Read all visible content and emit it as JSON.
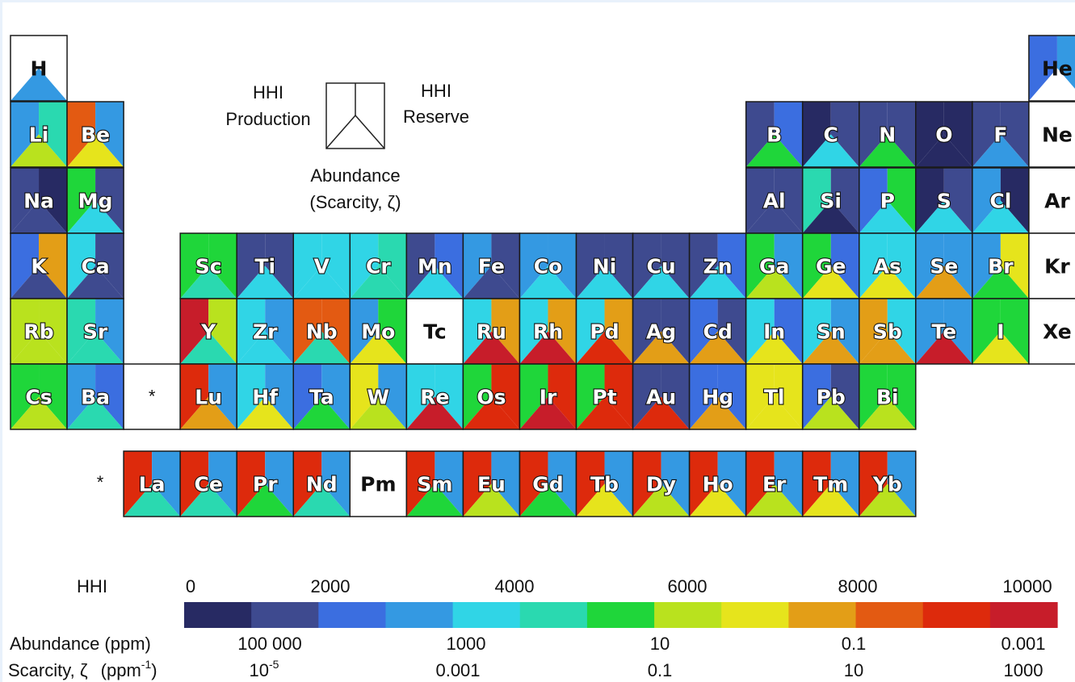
{
  "legend": {
    "hhi_production": [
      "HHI",
      "Production"
    ],
    "hhi_reserve": [
      "HHI",
      "Reserve"
    ],
    "abundance": [
      "Abundance",
      "(Scarcity, ζ)"
    ]
  },
  "footnote_marker": "*",
  "scale": {
    "hhi_label": "HHI",
    "hhi_ticks": [
      "0",
      "2000",
      "4000",
      "6000",
      "8000",
      "10000"
    ],
    "abundance_label": "Abundance (ppm)",
    "abundance_ticks": [
      "100 000",
      "1000",
      "10",
      "0.1",
      "0.001"
    ],
    "scarcity_label_main": "Scarcity, ζ",
    "scarcity_label_unit": "(ppm",
    "scarcity_label_unit_sup": "-1",
    "scarcity_label_unit_close": ")",
    "scarcity_ticks": [
      {
        "base": "10",
        "sup": "-5"
      },
      {
        "base": "0.001",
        "sup": ""
      },
      {
        "base": "0.1",
        "sup": ""
      },
      {
        "base": "10",
        "sup": ""
      },
      {
        "base": "1000",
        "sup": ""
      }
    ],
    "colors": [
      "#272a63",
      "#3e4a8f",
      "#3b6ee0",
      "#3499e2",
      "#30d5e6",
      "#2ad9b0",
      "#1fd63a",
      "#b9e21e",
      "#e6e41c",
      "#e39e17",
      "#e35a12",
      "#dd2a0c",
      "#c71d2a"
    ]
  },
  "colors": {
    "0": "#272a63",
    "1": "#3e4a8f",
    "2": "#3b6ee0",
    "3": "#3499e2",
    "4": "#30d5e6",
    "5": "#2ad9b0",
    "6": "#1fd63a",
    "7": "#b9e21e",
    "8": "#e6e41c",
    "9": "#e39e17",
    "A": "#e35a12",
    "B": "#dd2a0c",
    "C": "#c71d2a",
    "W": "#ffffff"
  },
  "elements": [
    {
      "sym": "H",
      "row": 0,
      "col": 0,
      "c": "WW3",
      "text": "dark"
    },
    {
      "sym": "He",
      "row": 0,
      "col": 18,
      "c": "23W",
      "text": "dark"
    },
    {
      "sym": "Li",
      "row": 1,
      "col": 0,
      "c": "357",
      "text": "light"
    },
    {
      "sym": "Be",
      "row": 1,
      "col": 1,
      "c": "A38",
      "text": "light"
    },
    {
      "sym": "B",
      "row": 1,
      "col": 13,
      "c": "126",
      "text": "light"
    },
    {
      "sym": "C",
      "row": 1,
      "col": 14,
      "c": "014",
      "text": "light"
    },
    {
      "sym": "N",
      "row": 1,
      "col": 15,
      "c": "116",
      "text": "light"
    },
    {
      "sym": "O",
      "row": 1,
      "col": 16,
      "c": "000",
      "text": "light"
    },
    {
      "sym": "F",
      "row": 1,
      "col": 17,
      "c": "113",
      "text": "light"
    },
    {
      "sym": "Ne",
      "row": 1,
      "col": 18,
      "c": "WWW",
      "text": "dark"
    },
    {
      "sym": "Na",
      "row": 2,
      "col": 0,
      "c": "101",
      "text": "light"
    },
    {
      "sym": "Mg",
      "row": 2,
      "col": 1,
      "c": "614",
      "text": "light"
    },
    {
      "sym": "Al",
      "row": 2,
      "col": 13,
      "c": "111",
      "text": "light"
    },
    {
      "sym": "Si",
      "row": 2,
      "col": 14,
      "c": "510",
      "text": "light"
    },
    {
      "sym": "P",
      "row": 2,
      "col": 15,
      "c": "264",
      "text": "light"
    },
    {
      "sym": "S",
      "row": 2,
      "col": 16,
      "c": "014",
      "text": "light"
    },
    {
      "sym": "Cl",
      "row": 2,
      "col": 17,
      "c": "304",
      "text": "light"
    },
    {
      "sym": "Ar",
      "row": 2,
      "col": 18,
      "c": "WWW",
      "text": "dark"
    },
    {
      "sym": "K",
      "row": 3,
      "col": 0,
      "c": "291",
      "text": "light"
    },
    {
      "sym": "Ca",
      "row": 3,
      "col": 1,
      "c": "411",
      "text": "light"
    },
    {
      "sym": "Sc",
      "row": 3,
      "col": 3,
      "c": "665",
      "text": "light"
    },
    {
      "sym": "Ti",
      "row": 3,
      "col": 4,
      "c": "114",
      "text": "light"
    },
    {
      "sym": "V",
      "row": 3,
      "col": 5,
      "c": "444",
      "text": "light"
    },
    {
      "sym": "Cr",
      "row": 3,
      "col": 6,
      "c": "455",
      "text": "light"
    },
    {
      "sym": "Mn",
      "row": 3,
      "col": 7,
      "c": "124",
      "text": "light"
    },
    {
      "sym": "Fe",
      "row": 3,
      "col": 8,
      "c": "311",
      "text": "light"
    },
    {
      "sym": "Co",
      "row": 3,
      "col": 9,
      "c": "334",
      "text": "light"
    },
    {
      "sym": "Ni",
      "row": 3,
      "col": 10,
      "c": "114",
      "text": "light"
    },
    {
      "sym": "Cu",
      "row": 3,
      "col": 11,
      "c": "114",
      "text": "light"
    },
    {
      "sym": "Zn",
      "row": 3,
      "col": 12,
      "c": "124",
      "text": "light"
    },
    {
      "sym": "Ga",
      "row": 3,
      "col": 13,
      "c": "637",
      "text": "light"
    },
    {
      "sym": "Ge",
      "row": 3,
      "col": 14,
      "c": "628",
      "text": "light"
    },
    {
      "sym": "As",
      "row": 3,
      "col": 15,
      "c": "448",
      "text": "light"
    },
    {
      "sym": "Se",
      "row": 3,
      "col": 16,
      "c": "339",
      "text": "light"
    },
    {
      "sym": "Br",
      "row": 3,
      "col": 17,
      "c": "386",
      "text": "light"
    },
    {
      "sym": "Kr",
      "row": 3,
      "col": 18,
      "c": "WWW",
      "text": "dark"
    },
    {
      "sym": "Rb",
      "row": 4,
      "col": 0,
      "c": "777",
      "text": "light"
    },
    {
      "sym": "Sr",
      "row": 4,
      "col": 1,
      "c": "535",
      "text": "light"
    },
    {
      "sym": "Y",
      "row": 4,
      "col": 3,
      "c": "C75",
      "text": "light"
    },
    {
      "sym": "Zr",
      "row": 4,
      "col": 4,
      "c": "434",
      "text": "light"
    },
    {
      "sym": "Nb",
      "row": 4,
      "col": 5,
      "c": "AA5",
      "text": "light"
    },
    {
      "sym": "Mo",
      "row": 4,
      "col": 6,
      "c": "368",
      "text": "light"
    },
    {
      "sym": "Tc",
      "row": 4,
      "col": 7,
      "c": "WWW",
      "text": "dark"
    },
    {
      "sym": "Ru",
      "row": 4,
      "col": 8,
      "c": "49C",
      "text": "light"
    },
    {
      "sym": "Rh",
      "row": 4,
      "col": 9,
      "c": "49C",
      "text": "light"
    },
    {
      "sym": "Pd",
      "row": 4,
      "col": 10,
      "c": "49B",
      "text": "light"
    },
    {
      "sym": "Ag",
      "row": 4,
      "col": 11,
      "c": "119",
      "text": "light"
    },
    {
      "sym": "Cd",
      "row": 4,
      "col": 12,
      "c": "219",
      "text": "light"
    },
    {
      "sym": "In",
      "row": 4,
      "col": 13,
      "c": "428",
      "text": "light"
    },
    {
      "sym": "Sn",
      "row": 4,
      "col": 14,
      "c": "439",
      "text": "light"
    },
    {
      "sym": "Sb",
      "row": 4,
      "col": 15,
      "c": "949",
      "text": "light"
    },
    {
      "sym": "Te",
      "row": 4,
      "col": 16,
      "c": "33C",
      "text": "light"
    },
    {
      "sym": "I",
      "row": 4,
      "col": 17,
      "c": "668",
      "text": "light"
    },
    {
      "sym": "Xe",
      "row": 4,
      "col": 18,
      "c": "WWW",
      "text": "dark"
    },
    {
      "sym": "Cs",
      "row": 5,
      "col": 0,
      "c": "667",
      "text": "light"
    },
    {
      "sym": "Ba",
      "row": 5,
      "col": 1,
      "c": "325",
      "text": "light"
    },
    {
      "sym": "*",
      "row": 5,
      "col": 2,
      "c": "WWW",
      "text": "marker"
    },
    {
      "sym": "Lu",
      "row": 5,
      "col": 3,
      "c": "B39",
      "text": "light"
    },
    {
      "sym": "Hf",
      "row": 5,
      "col": 4,
      "c": "438",
      "text": "light"
    },
    {
      "sym": "Ta",
      "row": 5,
      "col": 5,
      "c": "236",
      "text": "light"
    },
    {
      "sym": "W",
      "row": 5,
      "col": 6,
      "c": "837",
      "text": "light"
    },
    {
      "sym": "Re",
      "row": 5,
      "col": 7,
      "c": "44C",
      "text": "light"
    },
    {
      "sym": "Os",
      "row": 5,
      "col": 8,
      "c": "6BB",
      "text": "light"
    },
    {
      "sym": "Ir",
      "row": 5,
      "col": 9,
      "c": "6BC",
      "text": "light"
    },
    {
      "sym": "Pt",
      "row": 5,
      "col": 10,
      "c": "6BB",
      "text": "light"
    },
    {
      "sym": "Au",
      "row": 5,
      "col": 11,
      "c": "11B",
      "text": "light"
    },
    {
      "sym": "Hg",
      "row": 5,
      "col": 12,
      "c": "229",
      "text": "light"
    },
    {
      "sym": "Tl",
      "row": 5,
      "col": 13,
      "c": "888",
      "text": "light"
    },
    {
      "sym": "Pb",
      "row": 5,
      "col": 14,
      "c": "217",
      "text": "light"
    },
    {
      "sym": "Bi",
      "row": 5,
      "col": 15,
      "c": "667",
      "text": "light"
    },
    {
      "sym": "La",
      "row": 6,
      "col": 2,
      "c": "B35",
      "text": "light"
    },
    {
      "sym": "Ce",
      "row": 6,
      "col": 3,
      "c": "B35",
      "text": "light"
    },
    {
      "sym": "Pr",
      "row": 6,
      "col": 4,
      "c": "B36",
      "text": "light"
    },
    {
      "sym": "Nd",
      "row": 6,
      "col": 5,
      "c": "B35",
      "text": "light"
    },
    {
      "sym": "Pm",
      "row": 6,
      "col": 6,
      "c": "WWW",
      "text": "dark"
    },
    {
      "sym": "Sm",
      "row": 6,
      "col": 7,
      "c": "B36",
      "text": "light"
    },
    {
      "sym": "Eu",
      "row": 6,
      "col": 8,
      "c": "B37",
      "text": "light"
    },
    {
      "sym": "Gd",
      "row": 6,
      "col": 9,
      "c": "B36",
      "text": "light"
    },
    {
      "sym": "Tb",
      "row": 6,
      "col": 10,
      "c": "B38",
      "text": "light"
    },
    {
      "sym": "Dy",
      "row": 6,
      "col": 11,
      "c": "B37",
      "text": "light"
    },
    {
      "sym": "Ho",
      "row": 6,
      "col": 12,
      "c": "B38",
      "text": "light"
    },
    {
      "sym": "Er",
      "row": 6,
      "col": 13,
      "c": "B37",
      "text": "light"
    },
    {
      "sym": "Tm",
      "row": 6,
      "col": 14,
      "c": "B38",
      "text": "light"
    },
    {
      "sym": "Yb",
      "row": 6,
      "col": 15,
      "c": "B37",
      "text": "light"
    }
  ]
}
